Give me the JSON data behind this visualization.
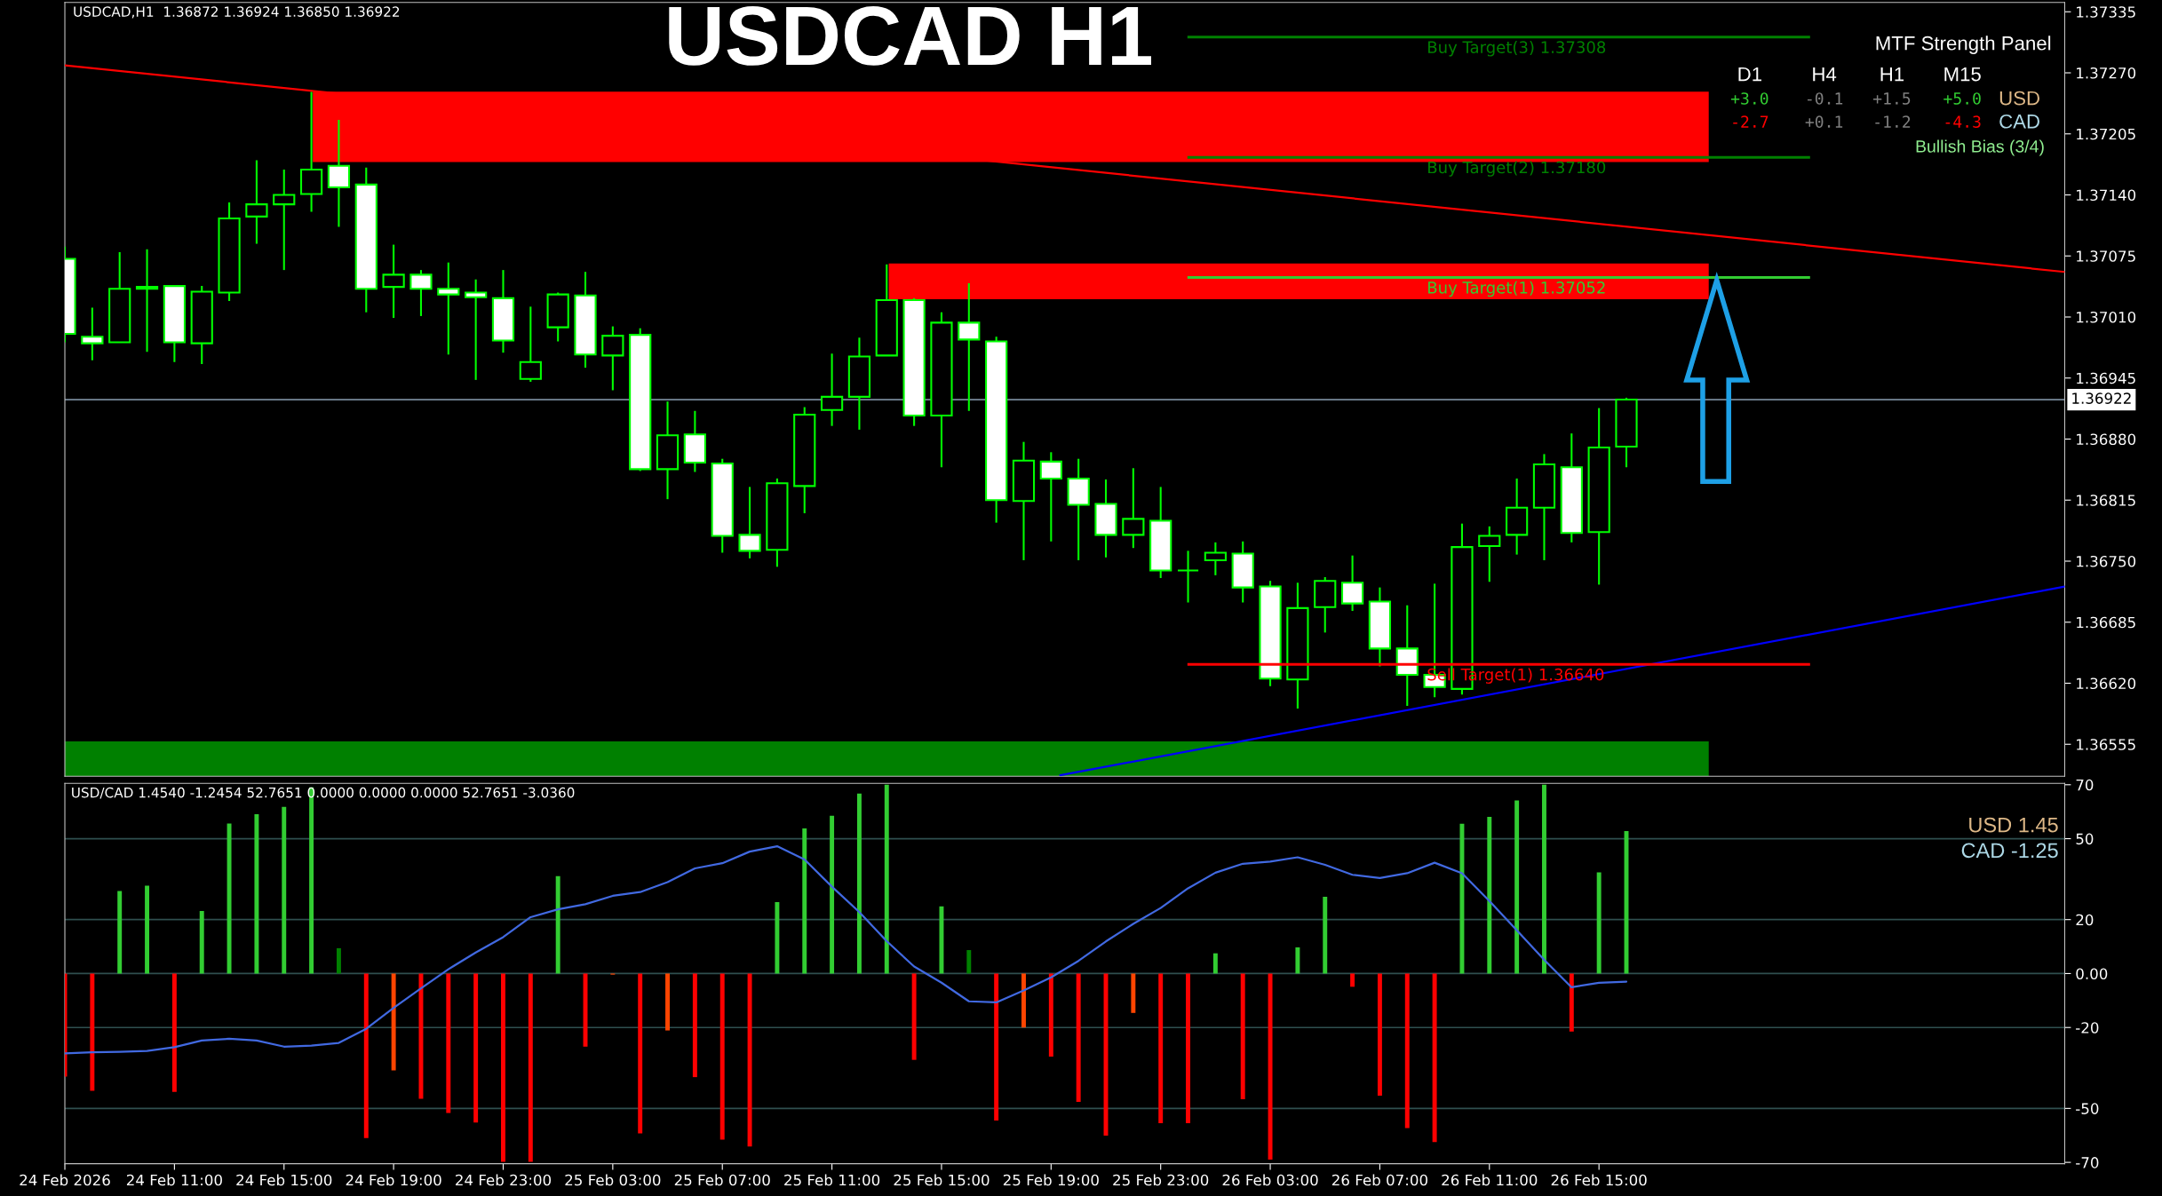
{
  "chart_data": [
    {
      "type": "candlestick",
      "title": "USDCAD H1",
      "color": "#00ff00",
      "tick_labels": "y",
      "annotations": [
        "USDCAD,H1  1.36872 1.36924 1.36850 1.36922",
        "MTF Strength Panel",
        "D1",
        "H4",
        "H1",
        "M15",
        "+3.0",
        "-0.1",
        "+1.5",
        "+5.0",
        "USD",
        "-2.7",
        "+0.1",
        "-1.2",
        "-4.3",
        "CAD",
        "Bullish Bias (3/4)"
      ],
      "x": [
        "2026-02-24T07:00",
        "2026-02-24T08:00",
        "2026-02-24T09:00",
        "2026-02-24T10:00",
        "2026-02-24T11:00",
        "2026-02-24T12:00",
        "2026-02-24T13:00",
        "2026-02-24T14:00",
        "2026-02-24T15:00",
        "2026-02-24T16:00",
        "2026-02-24T17:00",
        "2026-02-24T18:00",
        "2026-02-24T19:00",
        "2026-02-24T20:00",
        "2026-02-24T21:00",
        "2026-02-24T22:00",
        "2026-02-24T23:00",
        "2026-02-25T00:00",
        "2026-02-25T01:00",
        "2026-02-25T02:00",
        "2026-02-25T03:00",
        "2026-02-25T04:00",
        "2026-02-25T05:00",
        "2026-02-25T06:00",
        "2026-02-25T07:00",
        "2026-02-25T08:00",
        "2026-02-25T09:00",
        "2026-02-25T10:00",
        "2026-02-25T11:00",
        "2026-02-25T12:00",
        "2026-02-25T13:00",
        "2026-02-25T14:00",
        "2026-02-25T15:00",
        "2026-02-25T16:00",
        "2026-02-25T17:00",
        "2026-02-25T18:00",
        "2026-02-25T19:00",
        "2026-02-25T20:00",
        "2026-02-25T21:00",
        "2026-02-25T22:00",
        "2026-02-25T23:00",
        "2026-02-26T00:00",
        "2026-02-26T01:00",
        "2026-02-26T02:00",
        "2026-02-26T03:00",
        "2026-02-26T04:00",
        "2026-02-26T05:00",
        "2026-02-26T06:00",
        "2026-02-26T07:00",
        "2026-02-26T08:00",
        "2026-02-26T09:00",
        "2026-02-26T10:00",
        "2026-02-26T11:00",
        "2026-02-26T12:00",
        "2026-02-26T13:00",
        "2026-02-26T14:00",
        "2026-02-26T15:00",
        "2026-02-26T16:00"
      ],
      "ohlc": [
        [
          1.37072,
          1.37085,
          1.36983,
          1.36992
        ],
        [
          1.36989,
          1.3702,
          1.36964,
          1.36982
        ],
        [
          1.36983,
          1.37079,
          1.36983,
          1.3704
        ],
        [
          1.37042,
          1.37082,
          1.36973,
          1.3704
        ],
        [
          1.37043,
          1.37043,
          1.36962,
          1.36983
        ],
        [
          1.36982,
          1.37043,
          1.3696,
          1.37037
        ],
        [
          1.37036,
          1.37132,
          1.37027,
          1.37115
        ],
        [
          1.37117,
          1.37177,
          1.37088,
          1.3713
        ],
        [
          1.3713,
          1.37167,
          1.3706,
          1.3714
        ],
        [
          1.37141,
          1.3725,
          1.37122,
          1.37167
        ],
        [
          1.37171,
          1.3722,
          1.37106,
          1.37148
        ],
        [
          1.37151,
          1.37169,
          1.37015,
          1.3704
        ],
        [
          1.37042,
          1.37087,
          1.37009,
          1.37055
        ],
        [
          1.37055,
          1.3706,
          1.37011,
          1.3704
        ],
        [
          1.3704,
          1.37068,
          1.3697,
          1.37034
        ],
        [
          1.37036,
          1.3705,
          1.36943,
          1.37031
        ],
        [
          1.3703,
          1.3706,
          1.36972,
          1.36985
        ],
        [
          1.36944,
          1.37021,
          1.36941,
          1.36962
        ],
        [
          1.36999,
          1.37036,
          1.36984,
          1.37034
        ],
        [
          1.37033,
          1.37058,
          1.36956,
          1.3697
        ],
        [
          1.36969,
          1.37,
          1.36932,
          1.3699
        ],
        [
          1.36991,
          1.36998,
          1.36846,
          1.36848
        ],
        [
          1.36848,
          1.3692,
          1.36816,
          1.36884
        ],
        [
          1.36885,
          1.3691,
          1.36845,
          1.36855
        ],
        [
          1.36854,
          1.36859,
          1.36759,
          1.36777
        ],
        [
          1.36778,
          1.36829,
          1.36753,
          1.36761
        ],
        [
          1.36762,
          1.36838,
          1.36744,
          1.36833
        ],
        [
          1.3683,
          1.36914,
          1.36801,
          1.36906
        ],
        [
          1.36911,
          1.36971,
          1.36894,
          1.36925
        ],
        [
          1.36925,
          1.36988,
          1.3689,
          1.36968
        ],
        [
          1.36969,
          1.37066,
          1.36969,
          1.37028
        ],
        [
          1.37028,
          1.3703,
          1.36894,
          1.36905
        ],
        [
          1.36905,
          1.37015,
          1.3685,
          1.37004
        ],
        [
          1.37004,
          1.37046,
          1.3691,
          1.36986
        ],
        [
          1.36984,
          1.36989,
          1.36791,
          1.36815
        ],
        [
          1.36814,
          1.36877,
          1.36751,
          1.36857
        ],
        [
          1.36856,
          1.36866,
          1.36771,
          1.36838
        ],
        [
          1.36838,
          1.36859,
          1.36751,
          1.3681
        ],
        [
          1.36811,
          1.36837,
          1.36754,
          1.36778
        ],
        [
          1.36778,
          1.36849,
          1.36764,
          1.36795
        ],
        [
          1.36793,
          1.36829,
          1.36732,
          1.3674
        ],
        [
          1.3674,
          1.36761,
          1.36706,
          1.3674
        ],
        [
          1.36751,
          1.3677,
          1.36735,
          1.36759
        ],
        [
          1.36758,
          1.36771,
          1.36706,
          1.36722
        ],
        [
          1.36723,
          1.36729,
          1.36617,
          1.36625
        ],
        [
          1.36624,
          1.36727,
          1.36593,
          1.367
        ],
        [
          1.36701,
          1.36733,
          1.36674,
          1.36729
        ],
        [
          1.36727,
          1.36756,
          1.36697,
          1.36705
        ],
        [
          1.36707,
          1.36722,
          1.36638,
          1.36657
        ],
        [
          1.36657,
          1.36703,
          1.36596,
          1.36629
        ],
        [
          1.36629,
          1.36726,
          1.36605,
          1.36616
        ],
        [
          1.36614,
          1.3679,
          1.36608,
          1.36765
        ],
        [
          1.36766,
          1.36787,
          1.36728,
          1.36777
        ],
        [
          1.36778,
          1.36838,
          1.36757,
          1.36807
        ],
        [
          1.36807,
          1.36864,
          1.36751,
          1.36853
        ],
        [
          1.3685,
          1.36886,
          1.3677,
          1.3678
        ],
        [
          1.36781,
          1.36913,
          1.36725,
          1.36871
        ],
        [
          1.36872,
          1.36924,
          1.3685,
          1.36922
        ]
      ],
      "series": [
        {
          "type": "line",
          "color": "#ff0000",
          "x": [
            "2026-02-24T07:00",
            "2026-02-27T08:00"
          ],
          "values": [
            1.37278,
            1.37058
          ]
        },
        {
          "type": "line",
          "color": "#0000ff",
          "x": [
            "2026-02-25T19:20",
            "2026-02-27T08:00"
          ],
          "values": [
            1.36522,
            1.36723
          ]
        }
      ],
      "xlim": [
        "2026-02-24T07:00",
        "2026-02-27T08:00"
      ],
      "ylim": [
        1.36521,
        1.37345
      ],
      "yticks": [
        1.37335,
        {
          "value": 1.3727,
          "label": "1.37270"
        },
        1.37205,
        {
          "value": 1.3714,
          "label": "1.37140"
        },
        1.37075,
        {
          "value": 1.3701,
          "label": "1.37010"
        },
        1.36945,
        {
          "value": 1.3688,
          "label": "1.36880"
        },
        1.36815,
        {
          "value": 1.3675,
          "label": "1.36750"
        },
        1.36685,
        {
          "value": 1.3662,
          "label": "1.36620"
        },
        1.36555
      ],
      "ref_lines": [
        {
          "axis": "y",
          "value": 1.37308,
          "label": "Buy Target(3) 1.37308",
          "color": "#008000"
        },
        {
          "axis": "y",
          "value": 1.3718,
          "label": "Buy Target(2) 1.37180",
          "color": "#008000"
        },
        {
          "axis": "y",
          "value": 1.37052,
          "label": "Buy Target(1) 1.37052",
          "color": "#32cd32"
        },
        {
          "axis": "y",
          "value": 1.3664,
          "label": "Sell Target(1) 1.36640",
          "color": "#ff0000"
        },
        {
          "axis": "y",
          "value": 1.36922,
          "label": "1.36922",
          "color": "#778899"
        }
      ],
      "bands": [
        {
          "axis": "y",
          "from": 1.37175,
          "to": 1.3725,
          "color": "#ff0000"
        },
        {
          "axis": "y",
          "from": 1.37029,
          "to": 1.37067,
          "color": "#ff0000"
        },
        {
          "axis": "y",
          "from": 1.36521,
          "to": 1.36558,
          "color": "#008000"
        }
      ]
    },
    {
      "type": "bar",
      "annotations": [
        "USD/CAD 1.4540 -1.2454 52.7651 0.0000 0.0000 0.0000 52.7651 -3.0360",
        "USD 1.45",
        "CAD -1.25"
      ],
      "x": [
        "2026-02-24T07:00",
        "2026-02-24T08:00",
        "2026-02-24T09:00",
        "2026-02-24T10:00",
        "2026-02-24T11:00",
        "2026-02-24T12:00",
        "2026-02-24T13:00",
        "2026-02-24T14:00",
        "2026-02-24T15:00",
        "2026-02-24T16:00",
        "2026-02-24T17:00",
        "2026-02-24T18:00",
        "2026-02-24T19:00",
        "2026-02-24T20:00",
        "2026-02-24T21:00",
        "2026-02-24T22:00",
        "2026-02-24T23:00",
        "2026-02-25T00:00",
        "2026-02-25T01:00",
        "2026-02-25T02:00",
        "2026-02-25T03:00",
        "2026-02-25T04:00",
        "2026-02-25T05:00",
        "2026-02-25T06:00",
        "2026-02-25T07:00",
        "2026-02-25T08:00",
        "2026-02-25T09:00",
        "2026-02-25T10:00",
        "2026-02-25T11:00",
        "2026-02-25T12:00",
        "2026-02-25T13:00",
        "2026-02-25T14:00",
        "2026-02-25T15:00",
        "2026-02-25T16:00",
        "2026-02-25T17:00",
        "2026-02-25T18:00",
        "2026-02-25T19:00",
        "2026-02-25T20:00",
        "2026-02-25T21:00",
        "2026-02-25T22:00",
        "2026-02-25T23:00",
        "2026-02-26T00:00",
        "2026-02-26T01:00",
        "2026-02-26T02:00",
        "2026-02-26T03:00",
        "2026-02-26T04:00",
        "2026-02-26T05:00",
        "2026-02-26T06:00",
        "2026-02-26T07:00",
        "2026-02-26T08:00",
        "2026-02-26T09:00",
        "2026-02-26T10:00",
        "2026-02-26T11:00",
        "2026-02-26T12:00",
        "2026-02-26T13:00",
        "2026-02-26T14:00",
        "2026-02-26T15:00",
        "2026-02-26T16:00"
      ],
      "series": [
        {
          "type": "bar",
          "values": [
            -38.2,
            -43.5,
            30.6,
            32.6,
            -43.9,
            23.2,
            55.6,
            59.1,
            61.8,
            69,
            9.4,
            -61.0,
            -35.9,
            -46.4,
            -51.7,
            -55.2,
            -69.8,
            -69.8,
            36.1,
            -27.1,
            -0.4,
            -59.3,
            -21.1,
            -38.4,
            -61.6,
            -64.1,
            26.5,
            53.8,
            58.5,
            66.7,
            70,
            -32.0,
            24.9,
            8.7,
            -54.5,
            -20.0,
            -30.8,
            -47.6,
            -60.1,
            -14.6,
            -55.5,
            -55.5,
            7.5,
            -46.6,
            -69.0,
            9.7,
            28.5,
            -4.9,
            -45.3,
            -57.3,
            -62.5,
            55.5,
            58.1,
            64.2,
            70,
            -21.5,
            37.5,
            52.8
          ],
          "colors": [
            "#ff0000",
            "#ff0000",
            "#32cd32",
            "#32cd32",
            "#ff0000",
            "#32cd32",
            "#32cd32",
            "#32cd32",
            "#32cd32",
            "#32cd32",
            "#008000",
            "#ff0000",
            "#ff4500",
            "#ff0000",
            "#ff0000",
            "#ff0000",
            "#ff0000",
            "#ff0000",
            "#32cd32",
            "#ff0000",
            "#ff4500",
            "#ff0000",
            "#ff4500",
            "#ff0000",
            "#ff0000",
            "#ff0000",
            "#32cd32",
            "#32cd32",
            "#32cd32",
            "#32cd32",
            "#32cd32",
            "#ff0000",
            "#32cd32",
            "#008000",
            "#ff0000",
            "#ff4500",
            "#ff0000",
            "#ff0000",
            "#ff0000",
            "#ff4500",
            "#ff0000",
            "#ff0000",
            "#32cd32",
            "#ff0000",
            "#ff0000",
            "#32cd32",
            "#32cd32",
            "#ff0000",
            "#ff0000",
            "#ff0000",
            "#ff0000",
            "#32cd32",
            "#32cd32",
            "#32cd32",
            "#32cd32",
            "#ff0000",
            "#32cd32",
            "#32cd32"
          ]
        },
        {
          "type": "line",
          "color": "#4169e1",
          "values": [
            -29.6,
            -29.2,
            -29.0,
            -28.7,
            -27.3,
            -24.8,
            -24.2,
            -24.8,
            -27.1,
            -26.7,
            -25.7,
            -20.5,
            -12.7,
            -5.5,
            1.6,
            7.8,
            13.5,
            20.9,
            23.8,
            25.7,
            28.8,
            30.2,
            33.9,
            39.0,
            40.9,
            45.2,
            47.2,
            42.3,
            32.2,
            22.8,
            12,
            2.6,
            -3.4,
            -10.3,
            -10.7,
            -6.3,
            -1.4,
            4.7,
            11.9,
            18.4,
            24.3,
            31.6,
            37.4,
            40.7,
            41.5,
            43.1,
            40.3,
            36.6,
            35.4,
            37.2,
            41.1,
            37.2,
            26.9,
            16.0,
            5.1,
            -5.1,
            -3.4,
            -3.0
          ]
        }
      ],
      "xlim": [
        "2026-02-24T07:00",
        "2026-02-27T08:00"
      ],
      "xticks": [
        {
          "value": "2026-02-24T07:00",
          "label": "24 Feb 2026"
        },
        {
          "value": "2026-02-24T11:00",
          "label": "24 Feb 11:00"
        },
        {
          "value": "2026-02-24T15:00",
          "label": "24 Feb 15:00"
        },
        {
          "value": "2026-02-24T19:00",
          "label": "24 Feb 19:00"
        },
        {
          "value": "2026-02-24T23:00",
          "label": "24 Feb 23:00"
        },
        {
          "value": "2026-02-25T03:00",
          "label": "25 Feb 03:00"
        },
        {
          "value": "2026-02-25T07:00",
          "label": "25 Feb 07:00"
        },
        {
          "value": "2026-02-25T11:00",
          "label": "25 Feb 11:00"
        },
        {
          "value": "2026-02-25T15:00",
          "label": "25 Feb 15:00"
        },
        {
          "value": "2026-02-25T19:00",
          "label": "25 Feb 19:00"
        },
        {
          "value": "2026-02-25T23:00",
          "label": "25 Feb 23:00"
        },
        {
          "value": "2026-02-26T03:00",
          "label": "26 Feb 03:00"
        },
        {
          "value": "2026-02-26T07:00",
          "label": "26 Feb 07:00"
        },
        {
          "value": "2026-02-26T11:00",
          "label": "26 Feb 11:00"
        },
        {
          "value": "2026-02-26T15:00",
          "label": "26 Feb 15:00"
        }
      ],
      "ylim": [
        -70.5,
        70.5
      ],
      "yticks": [
        70,
        50,
        20,
        {
          "value": 0,
          "label": "0.00"
        },
        -20,
        -50,
        -70
      ],
      "ref_lines": [
        {
          "axis": "y",
          "value": 50,
          "color": "#2f4f4f"
        },
        {
          "axis": "y",
          "value": 20,
          "color": "#2f4f4f"
        },
        {
          "axis": "y",
          "value": 0,
          "color": "#2f4f4f"
        },
        {
          "axis": "y",
          "value": -20,
          "color": "#2f4f4f"
        },
        {
          "axis": "y",
          "value": -50,
          "color": "#2f4f4f"
        }
      ]
    }
  ]
}
